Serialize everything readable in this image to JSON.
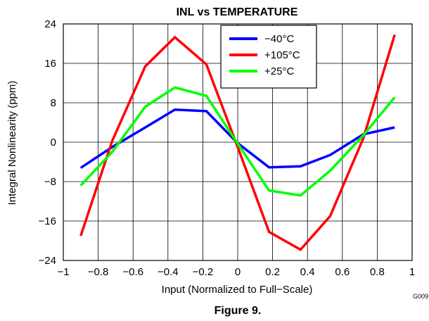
{
  "chart_data": {
    "type": "line",
    "title": "INL vs TEMPERATURE",
    "xlabel": "Input (Normalized to Full−Scale)",
    "ylabel": "Integral Nonlinearity  (ppm)",
    "xlim": [
      -1,
      1
    ],
    "ylim": [
      -24,
      24
    ],
    "xticks": [
      -1,
      -0.8,
      -0.6,
      -0.4,
      -0.2,
      0,
      0.2,
      0.4,
      0.6,
      0.8,
      1
    ],
    "xtick_labels": [
      "−1",
      "−0.8",
      "−0.6",
      "−0.4",
      "−0.2",
      "0",
      "0.2",
      "0.4",
      "0.6",
      "0.8",
      "1"
    ],
    "yticks": [
      -24,
      -16,
      -8,
      0,
      8,
      16,
      24
    ],
    "ytick_labels": [
      "−24",
      "−16",
      "−8",
      "0",
      "8",
      "16",
      "24"
    ],
    "grid": true,
    "legend_position": "top-right",
    "series": [
      {
        "name": "−40°C",
        "color": "#0000ff",
        "x": [
          -0.9,
          -0.72,
          -0.53,
          -0.36,
          -0.18,
          0,
          0.18,
          0.36,
          0.53,
          0.72,
          0.9
        ],
        "y": [
          -5.2,
          -1.0,
          3.0,
          6.6,
          6.3,
          -0.2,
          -5.1,
          -4.9,
          -2.6,
          1.6,
          3.0
        ]
      },
      {
        "name": "+105°C",
        "color": "#ff0000",
        "x": [
          -0.9,
          -0.72,
          -0.53,
          -0.36,
          -0.18,
          0,
          0.18,
          0.36,
          0.53,
          0.72,
          0.9
        ],
        "y": [
          -19.0,
          0.2,
          15.4,
          21.3,
          15.8,
          -1.0,
          -18.2,
          -21.8,
          -15.0,
          0.8,
          21.8
        ]
      },
      {
        "name": "+25°C",
        "color": "#00ff00",
        "x": [
          -0.9,
          -0.72,
          -0.53,
          -0.36,
          -0.18,
          0,
          0.18,
          0.36,
          0.53,
          0.72,
          0.9
        ],
        "y": [
          -8.8,
          -2.0,
          7.2,
          11.1,
          9.4,
          -0.3,
          -9.8,
          -10.8,
          -5.8,
          1.4,
          9.1
        ]
      }
    ],
    "id_label": "G009",
    "caption": "Figure 9."
  }
}
